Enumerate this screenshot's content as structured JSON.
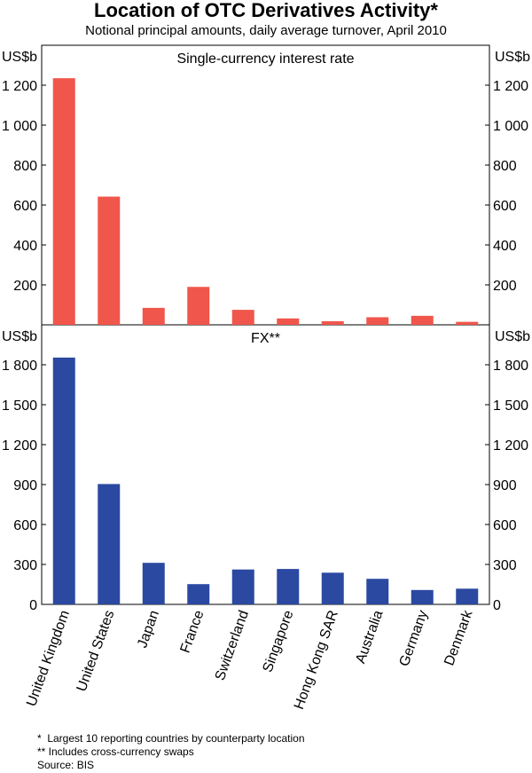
{
  "title": "Location of OTC Derivatives Activity*",
  "subtitle": "Notional principal amounts, daily average turnover, April 2010",
  "footnotes": [
    "*  Largest 10 reporting countries by counterparty location",
    "** Includes cross-currency swaps",
    "Source: BIS"
  ],
  "chart_data": [
    {
      "type": "bar",
      "title": "Single-currency interest rate",
      "unit": "US$b",
      "categories": [
        "United Kingdom",
        "United States",
        "Japan",
        "France",
        "Switzerland",
        "Singapore",
        "Hong Kong SAR",
        "Australia",
        "Germany",
        "Denmark"
      ],
      "values": [
        1235,
        642,
        85,
        190,
        75,
        32,
        18,
        38,
        45,
        15
      ],
      "ylim": [
        0,
        1400
      ],
      "yticks": [
        200,
        400,
        600,
        800,
        1000,
        1200
      ],
      "ytick_labels": [
        "200",
        "400",
        "600",
        "800",
        "1 000",
        "1 200"
      ],
      "color": "#f0564b"
    },
    {
      "type": "bar",
      "title": "FX**",
      "unit": "US$b",
      "categories": [
        "United Kingdom",
        "United States",
        "Japan",
        "France",
        "Switzerland",
        "Singapore",
        "Hong Kong SAR",
        "Australia",
        "Germany",
        "Denmark"
      ],
      "values": [
        1854,
        904,
        312,
        152,
        262,
        266,
        238,
        192,
        108,
        118
      ],
      "ylim": [
        0,
        2100
      ],
      "yticks": [
        0,
        300,
        600,
        900,
        1200,
        1500,
        1800
      ],
      "ytick_labels": [
        "0",
        "300",
        "600",
        "900",
        "1 200",
        "1 500",
        "1 800"
      ],
      "color": "#2b49a1"
    }
  ]
}
